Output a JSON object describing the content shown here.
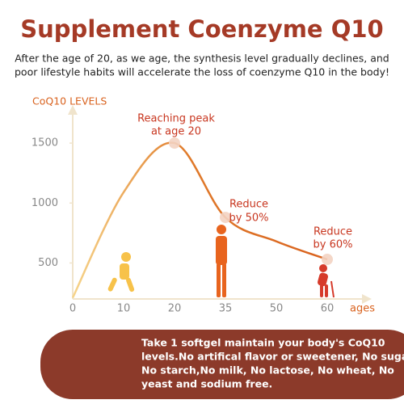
{
  "chart_data": {
    "type": "line",
    "title": "Supplement Coenzyme Q10",
    "subtitle": [
      "After the age of 20, as we age, the synthesis level gradually declines, and",
      "poor lifestyle habits will accelerate the loss of coenzyme Q10 in the body!"
    ],
    "y_label": "CoQ10 LEVELS",
    "x_label": "ages",
    "categories": [
      "0",
      "10",
      "20",
      "35",
      "50",
      "60"
    ],
    "series": [
      {
        "name": "CoQ10 LEVELS",
        "color": "#d9621e",
        "values": [
          210,
          1090,
          1500,
          880,
          680,
          530
        ]
      }
    ],
    "ylim": [
      200,
      1750
    ],
    "yticks": [
      500,
      1000,
      1500
    ],
    "annotations": [
      [
        "Reaching peak",
        "at age 20"
      ],
      [
        "Reduce",
        "by 50%"
      ],
      [
        "Reduce",
        "by 60%"
      ]
    ],
    "note": [
      "Take 1 softgel maintain your body's CoQ10",
      "levels.No artifical flavor or sweetener, No sugar,",
      "No starch,No milk, No lactose, No wheat, No",
      "yeast and sodium free."
    ]
  }
}
